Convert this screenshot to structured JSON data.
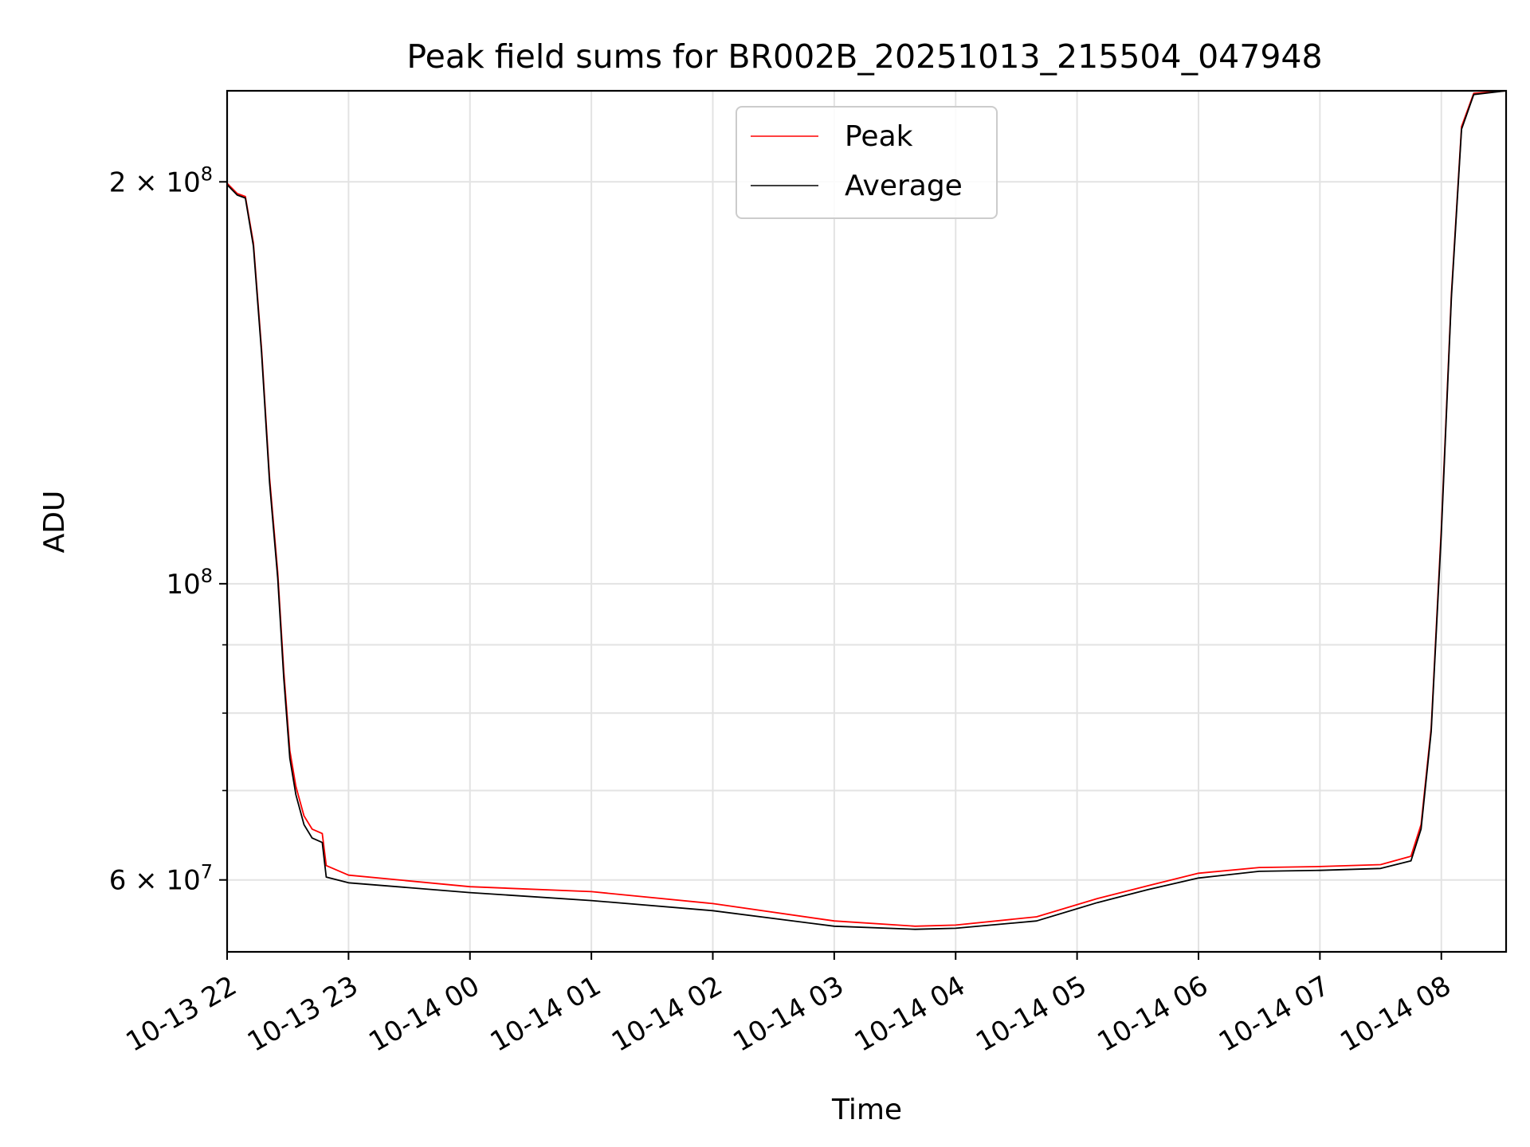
{
  "chart_data": {
    "type": "line",
    "title": "Peak field sums for BR002B_20251013_215504_047948",
    "xlabel": "Time",
    "ylabel": "ADU",
    "yscale": "log",
    "grid": true,
    "legend_position": "top-center",
    "xlim": [
      "2025-10-13 22:00",
      "2025-10-14 08:32"
    ],
    "ylim": [
      53000000,
      234000000
    ],
    "x_ticks": [
      {
        "t": "2025-10-13 22:00",
        "label": "10-13 22"
      },
      {
        "t": "2025-10-13 23:00",
        "label": "10-13 23"
      },
      {
        "t": "2025-10-14 00:00",
        "label": "10-14 00"
      },
      {
        "t": "2025-10-14 01:00",
        "label": "10-14 01"
      },
      {
        "t": "2025-10-14 02:00",
        "label": "10-14 02"
      },
      {
        "t": "2025-10-14 03:00",
        "label": "10-14 03"
      },
      {
        "t": "2025-10-14 04:00",
        "label": "10-14 04"
      },
      {
        "t": "2025-10-14 05:00",
        "label": "10-14 05"
      },
      {
        "t": "2025-10-14 06:00",
        "label": "10-14 06"
      },
      {
        "t": "2025-10-14 07:00",
        "label": "10-14 07"
      },
      {
        "t": "2025-10-14 08:00",
        "label": "10-14 08"
      }
    ],
    "y_major_ticks": [
      {
        "value": 60000000,
        "base": "6 × 10",
        "exp": "7"
      },
      {
        "value": 100000000,
        "base": "10",
        "exp": "8"
      },
      {
        "value": 200000000,
        "base": "2 × 10",
        "exp": "8"
      }
    ],
    "y_minor_ticks": [
      70000000,
      80000000,
      90000000
    ],
    "series": [
      {
        "name": "Peak",
        "color": "#ff0000",
        "points": [
          [
            "2025-10-13 22:00",
            199500000
          ],
          [
            "2025-10-13 22:05",
            196000000
          ],
          [
            "2025-10-13 22:09",
            195000000
          ],
          [
            "2025-10-13 22:13",
            180000000
          ],
          [
            "2025-10-13 22:17",
            150000000
          ],
          [
            "2025-10-13 22:21",
            120000000
          ],
          [
            "2025-10-13 22:25",
            102000000
          ],
          [
            "2025-10-13 22:28",
            86000000
          ],
          [
            "2025-10-13 22:31",
            75000000
          ],
          [
            "2025-10-13 22:34",
            70500000
          ],
          [
            "2025-10-13 22:38",
            67000000
          ],
          [
            "2025-10-13 22:42",
            65500000
          ],
          [
            "2025-10-13 22:47",
            65000000
          ],
          [
            "2025-10-13 22:49",
            61500000
          ],
          [
            "2025-10-13 23:00",
            60500000
          ],
          [
            "2025-10-14 00:00",
            59300000
          ],
          [
            "2025-10-14 01:00",
            58800000
          ],
          [
            "2025-10-14 02:00",
            57600000
          ],
          [
            "2025-10-14 03:00",
            55900000
          ],
          [
            "2025-10-14 03:40",
            55400000
          ],
          [
            "2025-10-14 04:00",
            55500000
          ],
          [
            "2025-10-14 04:40",
            56300000
          ],
          [
            "2025-10-14 05:10",
            58100000
          ],
          [
            "2025-10-14 05:35",
            59400000
          ],
          [
            "2025-10-14 06:00",
            60700000
          ],
          [
            "2025-10-14 06:30",
            61300000
          ],
          [
            "2025-10-14 07:00",
            61400000
          ],
          [
            "2025-10-14 07:30",
            61600000
          ],
          [
            "2025-10-14 07:45",
            62500000
          ],
          [
            "2025-10-14 07:50",
            66000000
          ],
          [
            "2025-10-14 07:55",
            78000000
          ],
          [
            "2025-10-14 08:00",
            110000000
          ],
          [
            "2025-10-14 08:05",
            165000000
          ],
          [
            "2025-10-14 08:10",
            220000000
          ],
          [
            "2025-10-14 08:16",
            233000000
          ],
          [
            "2025-10-14 08:32",
            234000000
          ]
        ]
      },
      {
        "name": "Average",
        "color": "#000000",
        "points": [
          [
            "2025-10-13 22:00",
            199000000
          ],
          [
            "2025-10-13 22:05",
            195500000
          ],
          [
            "2025-10-13 22:09",
            194500000
          ],
          [
            "2025-10-13 22:13",
            179000000
          ],
          [
            "2025-10-13 22:17",
            149000000
          ],
          [
            "2025-10-13 22:21",
            119000000
          ],
          [
            "2025-10-13 22:25",
            101000000
          ],
          [
            "2025-10-13 22:28",
            85000000
          ],
          [
            "2025-10-13 22:31",
            74000000
          ],
          [
            "2025-10-13 22:34",
            69500000
          ],
          [
            "2025-10-13 22:38",
            66000000
          ],
          [
            "2025-10-13 22:42",
            64500000
          ],
          [
            "2025-10-13 22:47",
            64000000
          ],
          [
            "2025-10-13 22:49",
            60300000
          ],
          [
            "2025-10-13 23:00",
            59700000
          ],
          [
            "2025-10-14 00:00",
            58700000
          ],
          [
            "2025-10-14 01:00",
            57900000
          ],
          [
            "2025-10-14 02:00",
            56900000
          ],
          [
            "2025-10-14 03:00",
            55400000
          ],
          [
            "2025-10-14 03:40",
            55100000
          ],
          [
            "2025-10-14 04:00",
            55200000
          ],
          [
            "2025-10-14 04:40",
            55900000
          ],
          [
            "2025-10-14 05:10",
            57700000
          ],
          [
            "2025-10-14 05:35",
            59000000
          ],
          [
            "2025-10-14 06:00",
            60200000
          ],
          [
            "2025-10-14 06:30",
            60900000
          ],
          [
            "2025-10-14 07:00",
            61000000
          ],
          [
            "2025-10-14 07:30",
            61200000
          ],
          [
            "2025-10-14 07:45",
            62000000
          ],
          [
            "2025-10-14 07:50",
            65500000
          ],
          [
            "2025-10-14 07:55",
            77500000
          ],
          [
            "2025-10-14 08:00",
            109000000
          ],
          [
            "2025-10-14 08:05",
            164000000
          ],
          [
            "2025-10-14 08:10",
            219000000
          ],
          [
            "2025-10-14 08:16",
            232500000
          ],
          [
            "2025-10-14 08:32",
            234000000
          ]
        ]
      }
    ]
  }
}
